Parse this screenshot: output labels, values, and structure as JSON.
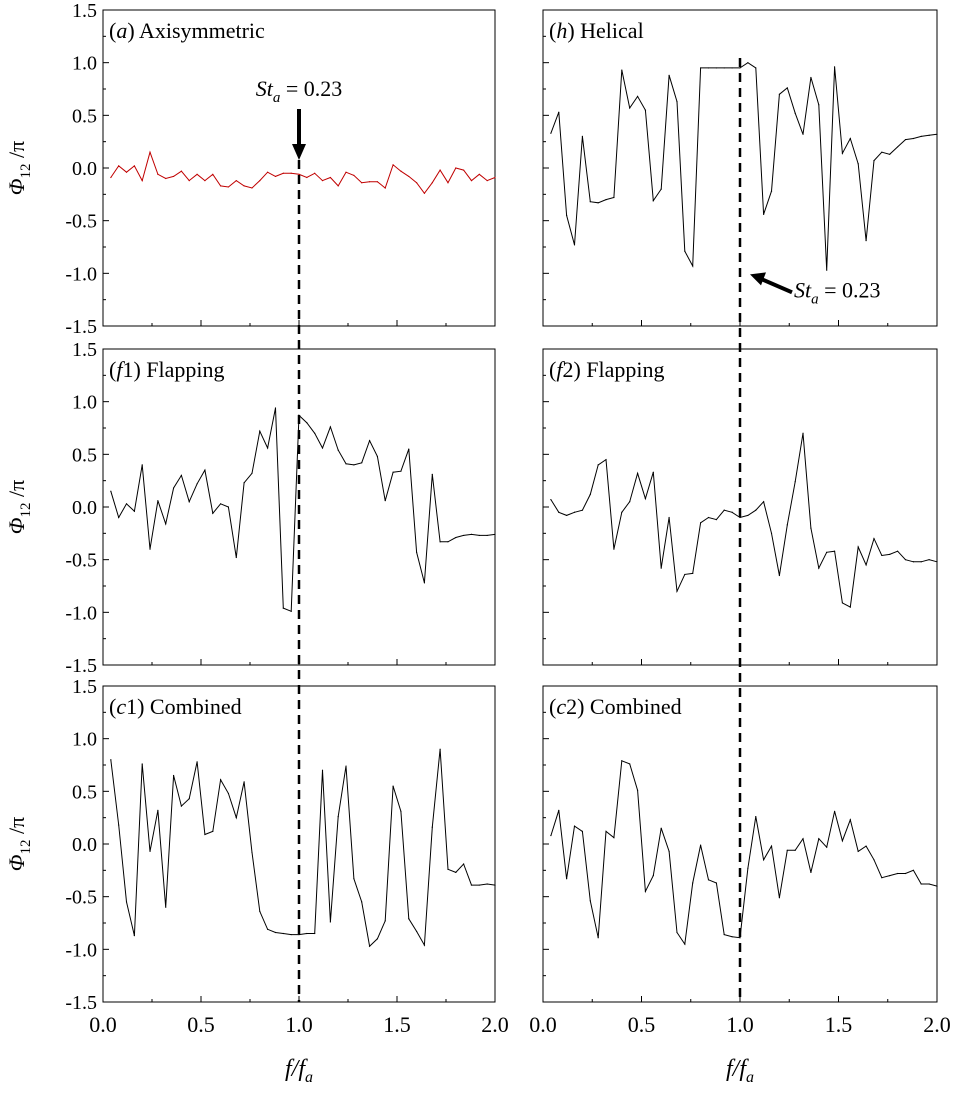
{
  "figure": {
    "x_axis_label": {
      "main": "f",
      "slash": "/",
      "f": "f",
      "sub": "a"
    },
    "y_axis_label": {
      "phi": "Φ",
      "sub": "12",
      "rest": " /π"
    }
  },
  "chart_data": [
    {
      "type": "line",
      "panel": "top-left",
      "label_tag": "a",
      "label_text": " Axisymmetric",
      "series": [
        {
          "color": "#c00000",
          "x": [
            0.04,
            0.08,
            0.12,
            0.16,
            0.2,
            0.24,
            0.28,
            0.32,
            0.36,
            0.4,
            0.44,
            0.48,
            0.52,
            0.56,
            0.6,
            0.64,
            0.68,
            0.72,
            0.76,
            0.8,
            0.84,
            0.88,
            0.92,
            0.96,
            1.0,
            1.04,
            1.08,
            1.12,
            1.16,
            1.2,
            1.24,
            1.28,
            1.32,
            1.36,
            1.4,
            1.44,
            1.48,
            1.52,
            1.56,
            1.6,
            1.64,
            1.68,
            1.72,
            1.76,
            1.8,
            1.84,
            1.88,
            1.92,
            1.96,
            2.0
          ],
          "y": [
            -0.09,
            0.02,
            -0.04,
            0.02,
            -0.12,
            0.15,
            -0.06,
            -0.1,
            -0.08,
            -0.03,
            -0.12,
            -0.06,
            -0.12,
            -0.06,
            -0.17,
            -0.18,
            -0.12,
            -0.17,
            -0.19,
            -0.12,
            -0.04,
            -0.08,
            -0.05,
            -0.05,
            -0.06,
            -0.09,
            -0.05,
            -0.12,
            -0.09,
            -0.17,
            -0.04,
            -0.07,
            -0.14,
            -0.13,
            -0.13,
            -0.19,
            0.03,
            -0.03,
            -0.08,
            -0.14,
            -0.24,
            -0.14,
            -0.02,
            -0.14,
            0.0,
            -0.02,
            -0.12,
            -0.06,
            -0.12,
            -0.09
          ]
        }
      ],
      "annotation": {
        "text_main": "St",
        "text_sub": "a",
        "text_value": " = 0.23",
        "x": 1.0,
        "arrow": "down"
      },
      "ylim": [
        -1.5,
        1.5
      ],
      "xlim": [
        0.0,
        2.0
      ],
      "yticks": [
        "1.5",
        "1.0",
        "0.5",
        "0.0",
        "-0.5",
        "-1.0",
        "-1.5"
      ],
      "xticks": []
    },
    {
      "type": "line",
      "panel": "top-right",
      "label_tag": "h",
      "label_text": " Helical",
      "series": [
        {
          "color": "#000000",
          "x": [
            0.04,
            0.08,
            0.12,
            0.16,
            0.2,
            0.24,
            0.28,
            0.32,
            0.36,
            0.4,
            0.44,
            0.48,
            0.52,
            0.56,
            0.6,
            0.64,
            0.68,
            0.72,
            0.76,
            0.8,
            0.84,
            0.88,
            0.92,
            0.96,
            1.0,
            1.04,
            1.08,
            1.12,
            1.16,
            1.2,
            1.24,
            1.28,
            1.32,
            1.36,
            1.4,
            1.44,
            1.48,
            1.52,
            1.56,
            1.6,
            1.64,
            1.68,
            1.72,
            1.76,
            1.8,
            1.84,
            1.88,
            1.92,
            1.96,
            2.0
          ],
          "y": [
            0.33,
            0.53,
            -0.45,
            -0.73,
            0.3,
            -0.32,
            -0.33,
            -0.3,
            -0.28,
            0.93,
            0.57,
            0.68,
            0.55,
            -0.31,
            -0.2,
            0.88,
            0.63,
            -0.79,
            -0.93,
            0.95,
            0.95,
            0.95,
            0.95,
            0.95,
            0.95,
            1.0,
            0.95,
            -0.44,
            -0.22,
            0.7,
            0.76,
            0.52,
            0.32,
            0.86,
            0.6,
            -0.97,
            0.96,
            0.14,
            0.28,
            0.04,
            -0.69,
            0.07,
            0.15,
            0.13,
            0.2,
            0.27,
            0.28,
            0.3,
            0.31,
            0.32
          ]
        }
      ],
      "annotation": {
        "text_main": "St",
        "text_sub": "a",
        "text_value": " = 0.23",
        "x": 1.0,
        "arrow": "left"
      },
      "ylim": [
        -1.5,
        1.5
      ],
      "xlim": [
        0.0,
        2.0
      ],
      "yticks": [],
      "xticks": []
    },
    {
      "type": "line",
      "panel": "middle-left",
      "label_tag": "f",
      "label_num": "1",
      "label_text": " Flapping",
      "series": [
        {
          "color": "#000000",
          "x": [
            0.04,
            0.08,
            0.12,
            0.16,
            0.2,
            0.24,
            0.28,
            0.32,
            0.36,
            0.4,
            0.44,
            0.48,
            0.52,
            0.56,
            0.6,
            0.64,
            0.68,
            0.72,
            0.76,
            0.8,
            0.84,
            0.88,
            0.92,
            0.96,
            1.0,
            1.04,
            1.08,
            1.12,
            1.16,
            1.2,
            1.24,
            1.28,
            1.32,
            1.36,
            1.4,
            1.44,
            1.48,
            1.52,
            1.56,
            1.6,
            1.64,
            1.68,
            1.72,
            1.76,
            1.8,
            1.84,
            1.88,
            1.92,
            1.96,
            2.0
          ],
          "y": [
            0.15,
            -0.1,
            0.03,
            -0.04,
            0.4,
            -0.4,
            0.06,
            -0.16,
            0.18,
            0.3,
            0.05,
            0.22,
            0.35,
            -0.06,
            0.03,
            0.0,
            -0.48,
            0.23,
            0.32,
            0.72,
            0.56,
            0.94,
            -0.96,
            -0.99,
            0.87,
            0.8,
            0.7,
            0.56,
            0.76,
            0.54,
            0.41,
            0.4,
            0.42,
            0.63,
            0.48,
            0.06,
            0.33,
            0.34,
            0.55,
            -0.43,
            -0.72,
            0.31,
            -0.33,
            -0.33,
            -0.29,
            -0.27,
            -0.26,
            -0.27,
            -0.27,
            -0.26
          ]
        }
      ],
      "ylim": [
        -1.5,
        1.5
      ],
      "xlim": [
        0.0,
        2.0
      ],
      "yticks": [
        "1.5",
        "1.0",
        "0.5",
        "0.0",
        "-0.5",
        "-1.0",
        "-1.5"
      ],
      "xticks": []
    },
    {
      "type": "line",
      "panel": "middle-right",
      "label_tag": "f",
      "label_num": "2",
      "label_text": " Flapping",
      "series": [
        {
          "color": "#000000",
          "x": [
            0.04,
            0.08,
            0.12,
            0.16,
            0.2,
            0.24,
            0.28,
            0.32,
            0.36,
            0.4,
            0.44,
            0.48,
            0.52,
            0.56,
            0.6,
            0.64,
            0.68,
            0.72,
            0.76,
            0.8,
            0.84,
            0.88,
            0.92,
            0.96,
            1.0,
            1.04,
            1.08,
            1.12,
            1.16,
            1.2,
            1.24,
            1.28,
            1.32,
            1.36,
            1.4,
            1.44,
            1.48,
            1.52,
            1.56,
            1.6,
            1.64,
            1.68,
            1.72,
            1.76,
            1.8,
            1.84,
            1.88,
            1.92,
            1.96,
            2.0
          ],
          "y": [
            0.07,
            -0.05,
            -0.08,
            -0.05,
            -0.03,
            0.12,
            0.4,
            0.45,
            -0.4,
            -0.05,
            0.05,
            0.32,
            0.08,
            0.33,
            -0.58,
            -0.1,
            -0.8,
            -0.64,
            -0.63,
            -0.15,
            -0.1,
            -0.12,
            -0.03,
            -0.05,
            -0.1,
            -0.08,
            -0.03,
            0.05,
            -0.25,
            -0.65,
            -0.17,
            0.24,
            0.7,
            -0.2,
            -0.58,
            -0.43,
            -0.42,
            -0.91,
            -0.95,
            -0.38,
            -0.55,
            -0.3,
            -0.46,
            -0.45,
            -0.42,
            -0.5,
            -0.52,
            -0.52,
            -0.5,
            -0.52
          ]
        }
      ],
      "ylim": [
        -1.5,
        1.5
      ],
      "xlim": [
        0.0,
        2.0
      ],
      "yticks": [],
      "xticks": []
    },
    {
      "type": "line",
      "panel": "bottom-left",
      "label_tag": "c",
      "label_num": "1",
      "label_text": " Combined",
      "series": [
        {
          "color": "#000000",
          "x": [
            0.04,
            0.08,
            0.12,
            0.16,
            0.2,
            0.24,
            0.28,
            0.32,
            0.36,
            0.4,
            0.44,
            0.48,
            0.52,
            0.56,
            0.6,
            0.64,
            0.68,
            0.72,
            0.76,
            0.8,
            0.84,
            0.88,
            0.92,
            0.96,
            1.0,
            1.04,
            1.08,
            1.12,
            1.16,
            1.2,
            1.24,
            1.28,
            1.32,
            1.36,
            1.4,
            1.44,
            1.48,
            1.52,
            1.56,
            1.6,
            1.64,
            1.68,
            1.72,
            1.76,
            1.8,
            1.84,
            1.88,
            1.92,
            1.96,
            2.0
          ],
          "y": [
            0.8,
            0.18,
            -0.55,
            -0.87,
            0.76,
            -0.07,
            0.32,
            -0.6,
            0.65,
            0.36,
            0.43,
            0.78,
            0.09,
            0.12,
            0.61,
            0.48,
            0.25,
            0.59,
            -0.08,
            -0.64,
            -0.81,
            -0.84,
            -0.85,
            -0.86,
            -0.86,
            -0.85,
            -0.85,
            0.7,
            -0.74,
            0.26,
            0.74,
            -0.33,
            -0.55,
            -0.97,
            -0.9,
            -0.73,
            0.55,
            0.31,
            -0.71,
            -0.83,
            -0.96,
            0.16,
            0.9,
            -0.24,
            -0.27,
            -0.19,
            -0.39,
            -0.39,
            -0.38,
            -0.39
          ]
        }
      ],
      "ylim": [
        -1.5,
        1.5
      ],
      "xlim": [
        0.0,
        2.0
      ],
      "yticks": [
        "1.5",
        "1.0",
        "0.5",
        "0.0",
        "-0.5",
        "-1.0",
        "-1.5"
      ],
      "xticks": [
        "0.0",
        "0.5",
        "1.0",
        "1.5",
        "2.0"
      ]
    },
    {
      "type": "line",
      "panel": "bottom-right",
      "label_tag": "c",
      "label_num": "2",
      "label_text": " Combined",
      "series": [
        {
          "color": "#000000",
          "x": [
            0.04,
            0.08,
            0.12,
            0.16,
            0.2,
            0.24,
            0.28,
            0.32,
            0.36,
            0.4,
            0.44,
            0.48,
            0.52,
            0.56,
            0.6,
            0.64,
            0.68,
            0.72,
            0.76,
            0.8,
            0.84,
            0.88,
            0.92,
            0.96,
            1.0,
            1.04,
            1.08,
            1.12,
            1.16,
            1.2,
            1.24,
            1.28,
            1.32,
            1.36,
            1.4,
            1.44,
            1.48,
            1.52,
            1.56,
            1.6,
            1.64,
            1.68,
            1.72,
            1.76,
            1.8,
            1.84,
            1.88,
            1.92,
            1.96,
            2.0
          ],
          "y": [
            0.08,
            0.32,
            -0.33,
            0.17,
            0.12,
            -0.54,
            -0.89,
            0.12,
            0.06,
            0.79,
            0.76,
            0.51,
            -0.45,
            -0.3,
            0.15,
            -0.07,
            -0.84,
            -0.95,
            -0.37,
            -0.01,
            -0.34,
            -0.37,
            -0.86,
            -0.88,
            -0.89,
            -0.23,
            0.26,
            -0.15,
            -0.02,
            -0.51,
            -0.06,
            -0.06,
            0.05,
            -0.27,
            0.05,
            -0.03,
            0.31,
            0.03,
            0.23,
            -0.07,
            -0.02,
            -0.15,
            -0.32,
            -0.3,
            -0.28,
            -0.28,
            -0.25,
            -0.38,
            -0.38,
            -0.4
          ]
        }
      ],
      "ylim": [
        -1.5,
        1.5
      ],
      "xlim": [
        0.0,
        2.0
      ],
      "yticks": [],
      "xticks": [
        "0.0",
        "0.5",
        "1.0",
        "1.5",
        "2.0"
      ]
    }
  ]
}
